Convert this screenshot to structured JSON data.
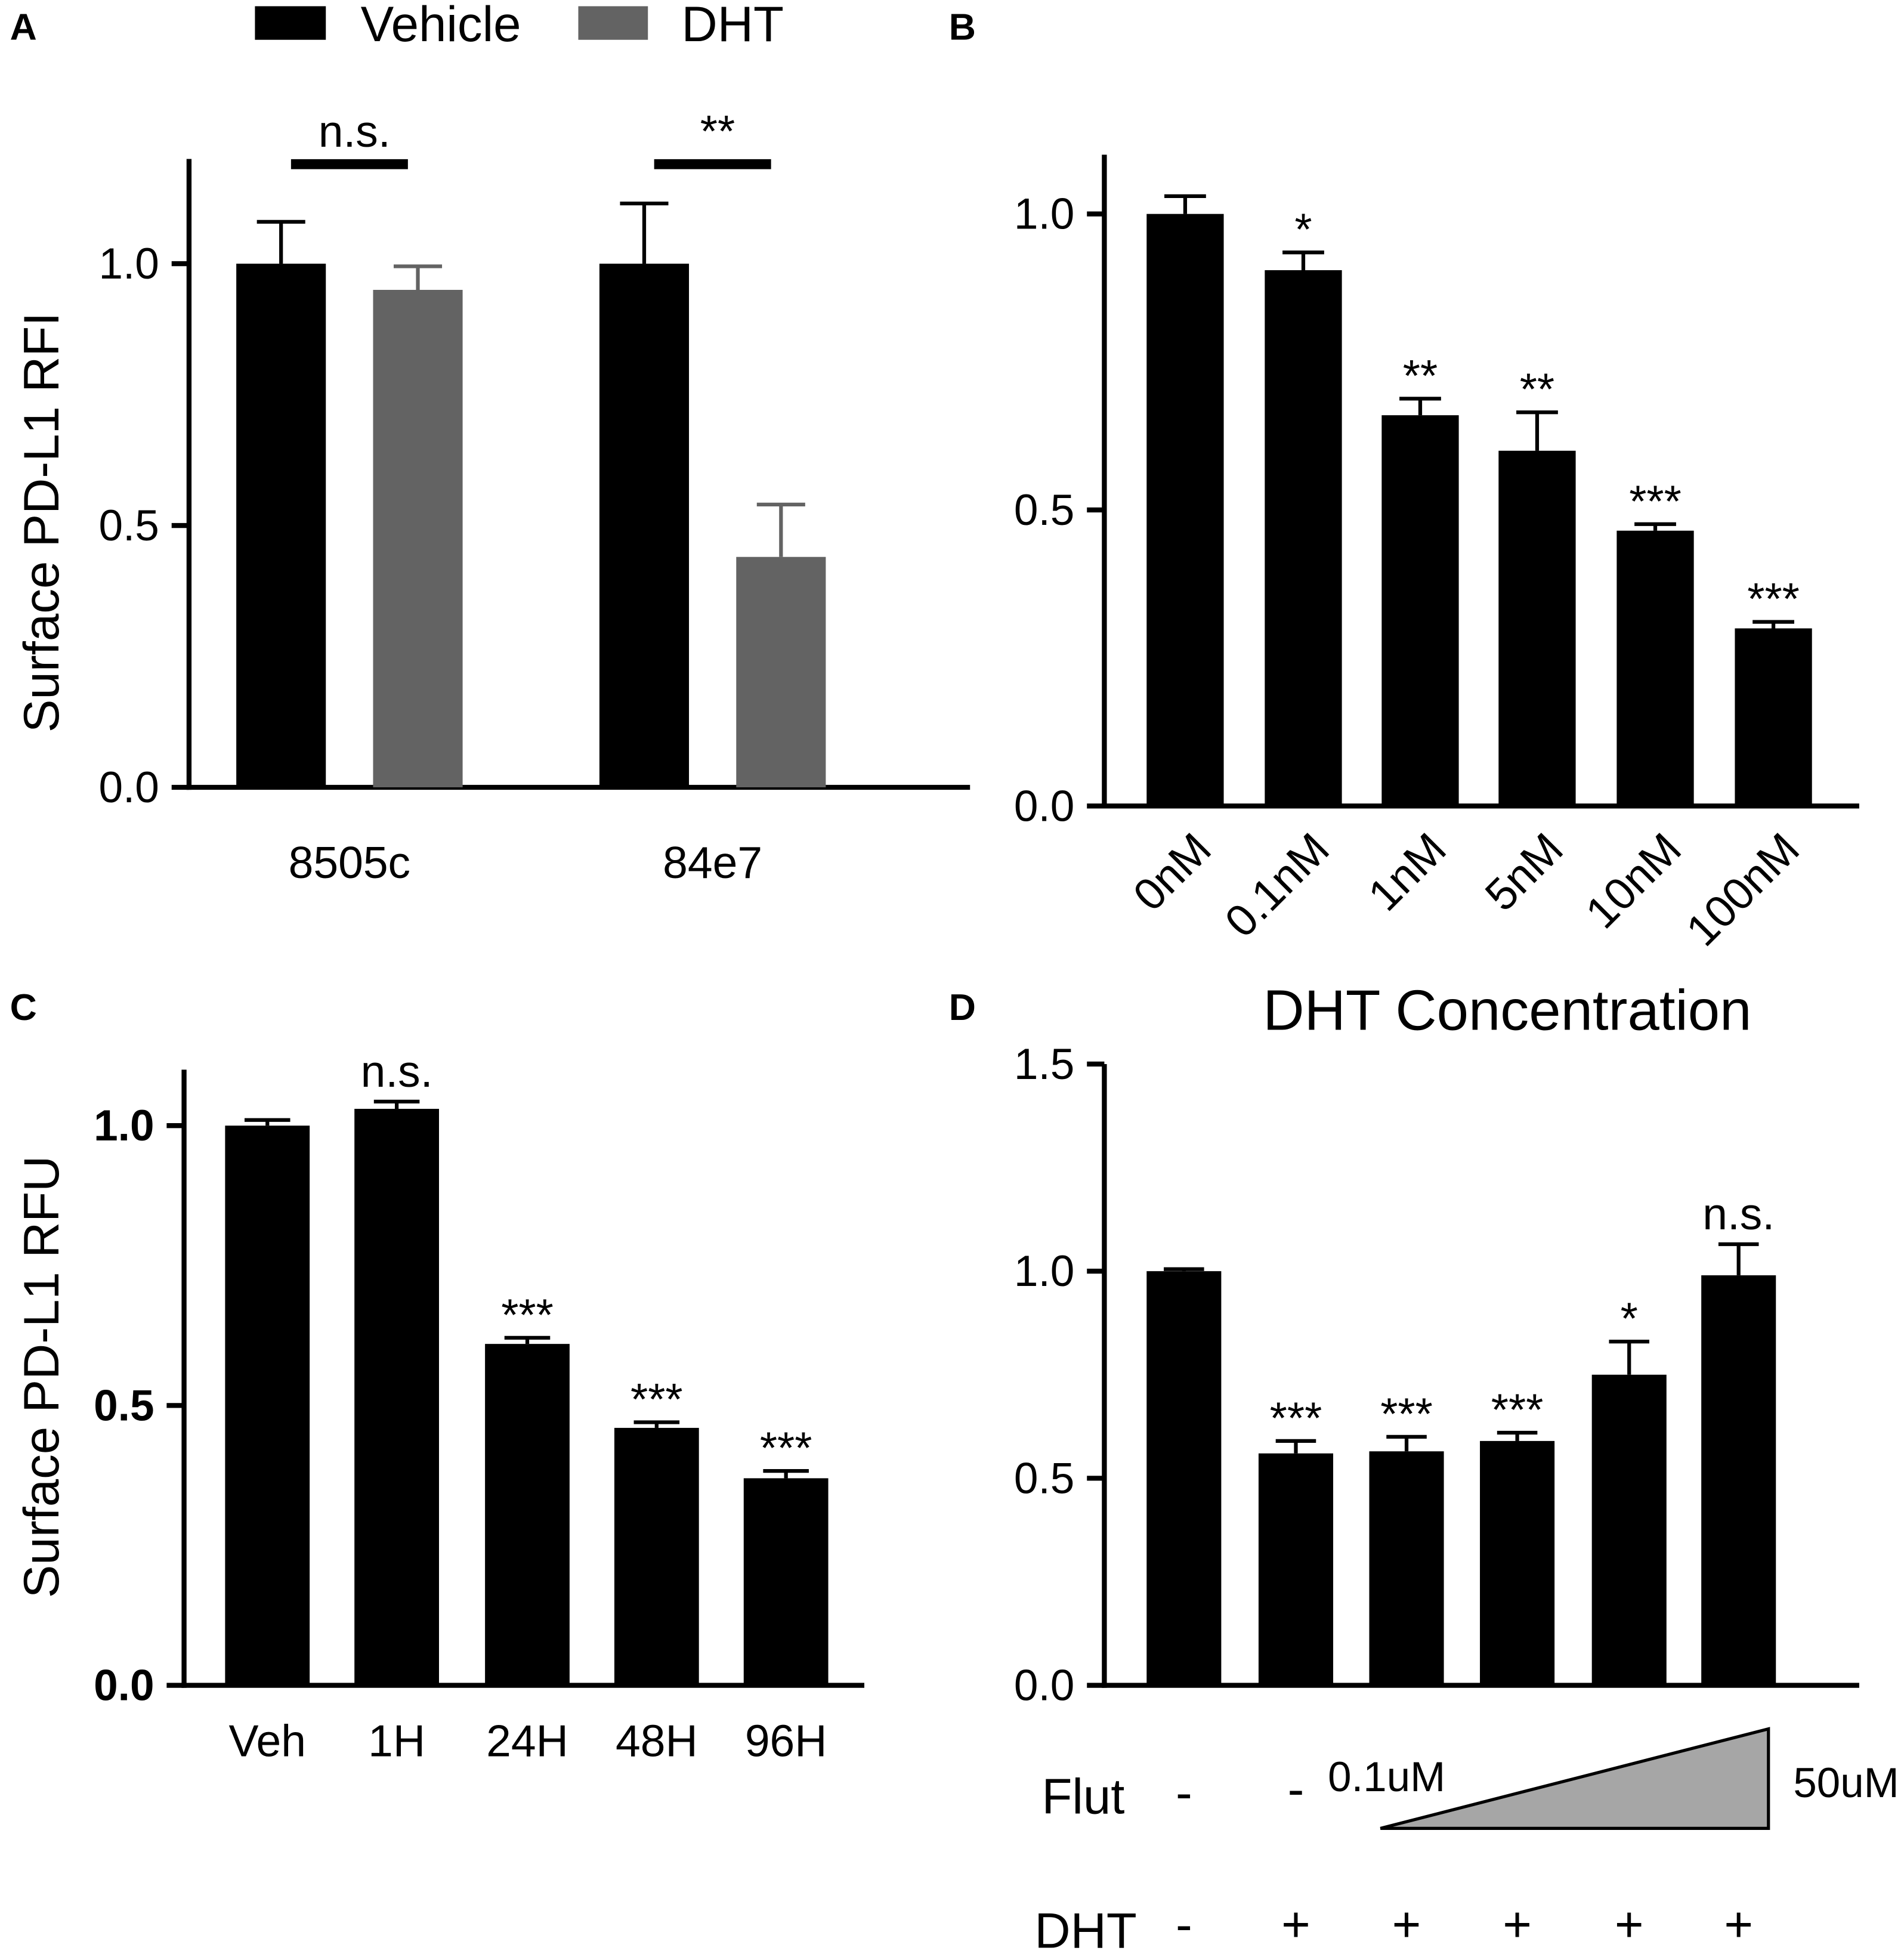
{
  "chart_data": [
    {
      "panel": "A",
      "type": "bar",
      "categories": [
        "8505c",
        "84e7"
      ],
      "series": [
        {
          "name": "Vehicle",
          "color": "#000000",
          "values": [
            1.0,
            1.0
          ],
          "errors": [
            0.08,
            0.115
          ]
        },
        {
          "name": "DHT",
          "color": "#636363",
          "values": [
            0.95,
            0.44
          ],
          "errors": [
            0.045,
            0.1
          ]
        }
      ],
      "comparisons": [
        "n.s.",
        "**"
      ],
      "ylabel": "Surface PD-L1 RFI",
      "ylim": [
        0,
        1.2
      ],
      "yticks": [
        0,
        0.5,
        1.0
      ],
      "ytick_labels": [
        "0.0",
        "0.5",
        "1.0"
      ]
    },
    {
      "panel": "B",
      "type": "bar",
      "categories": [
        "0nM",
        "0.1nM",
        "1nM",
        "5nM",
        "10nM",
        "100nM"
      ],
      "series": [
        {
          "color": "#000000",
          "values": [
            1.0,
            0.905,
            0.66,
            0.6,
            0.465,
            0.3
          ],
          "errors": [
            0.03,
            0.03,
            0.028,
            0.065,
            0.011,
            0.011
          ]
        }
      ],
      "significance": [
        null,
        "*",
        "**",
        "**",
        "***",
        "***"
      ],
      "xlabel": "DHT Concentration",
      "ylim": [
        0,
        1.1
      ],
      "yticks": [
        0,
        0.5,
        1.0
      ],
      "ytick_labels": [
        "0.0",
        "0.5",
        "1.0"
      ]
    },
    {
      "panel": "C",
      "type": "bar",
      "categories": [
        "Veh",
        "1H",
        "24H",
        "48H",
        "96H"
      ],
      "series": [
        {
          "color": "#000000",
          "values": [
            1.0,
            1.03,
            0.61,
            0.46,
            0.37
          ],
          "errors": [
            0.01,
            0.013,
            0.011,
            0.01,
            0.013
          ]
        }
      ],
      "significance": [
        null,
        "n.s.",
        "***",
        "***",
        "***"
      ],
      "ylabel": "Surface PD-L1 RFU",
      "ylim": [
        0,
        1.1
      ],
      "yticks": [
        0,
        0.5,
        1.0
      ],
      "ytick_labels": [
        "0.0",
        "0.5",
        "1.0"
      ]
    },
    {
      "panel": "D",
      "type": "bar",
      "series": [
        {
          "color": "#000000",
          "values": [
            1.0,
            0.56,
            0.565,
            0.59,
            0.75,
            0.99
          ],
          "errors": [
            0.005,
            0.03,
            0.035,
            0.02,
            0.08,
            0.075
          ]
        }
      ],
      "significance": [
        null,
        "***",
        "***",
        "***",
        "*",
        "n.s."
      ],
      "ylim": [
        0,
        1.5
      ],
      "yticks": [
        0,
        0.5,
        1.0,
        1.5
      ],
      "ytick_labels": [
        "0.0",
        "0.5",
        "1.0",
        "1.5"
      ],
      "treatments": {
        "flut": {
          "label": "Flut",
          "marks": [
            "-",
            "-"
          ],
          "range_start": "0.1uM",
          "range_end": "50uM"
        },
        "dht": {
          "label": "DHT",
          "marks": [
            "-",
            "+",
            "+",
            "+",
            "+",
            "+"
          ]
        }
      }
    }
  ]
}
